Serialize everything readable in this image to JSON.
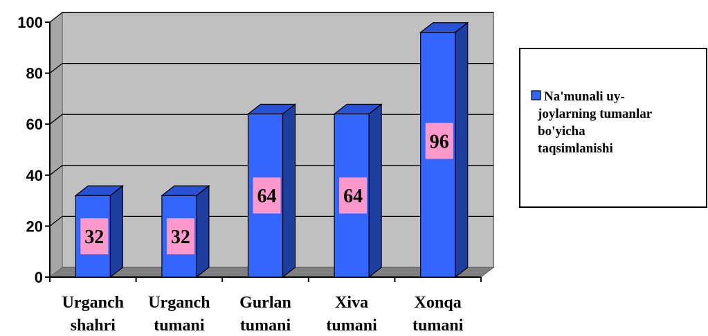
{
  "chart_data": {
    "type": "bar",
    "categories": [
      [
        "Urganch",
        "shahri"
      ],
      [
        "Urganch",
        "tumani"
      ],
      [
        "Gurlan",
        "tumani"
      ],
      [
        "Xiva",
        "tumani"
      ],
      [
        "Xonqa",
        "tumani"
      ]
    ],
    "series": [
      {
        "name": "Na'munali uy-joylarning tumanlar bo'yicha taqsimlanishi",
        "name_lines": [
          "Na'munali uy-",
          "joylarning tumanlar",
          "bo'yicha",
          "taqsimlanishi"
        ],
        "values": [
          32,
          32,
          64,
          64,
          96
        ],
        "data_labels": [
          "32",
          "32",
          "64",
          "64",
          "96"
        ],
        "color": "#3366FF"
      }
    ],
    "ylim": [
      0,
      100
    ],
    "yticks": [
      0,
      20,
      40,
      60,
      80,
      100
    ],
    "ytick_labels": [
      "0",
      "20",
      "40",
      "60",
      "80",
      "100"
    ],
    "grid": true,
    "legend": "right",
    "style": "3d-column",
    "colors": {
      "plot_background": "#C0C0C0",
      "floor": "#808080",
      "bar_front": "#3366FF",
      "bar_side": "#1F3FA0",
      "bar_top": "#2A52D6",
      "label_background": "#FF99CC",
      "grid": "#000000"
    }
  }
}
